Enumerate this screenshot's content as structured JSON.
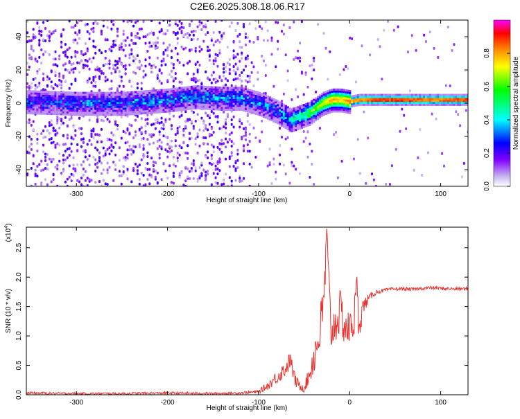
{
  "page_title": "C2E6.2025.308.18.06.R17",
  "chart_data": [
    {
      "type": "heatmap",
      "title": "C2E6.2025.308.18.06.R17",
      "xlabel": "Height of straight line (km)",
      "ylabel": "Frequency (Hz)",
      "xlim": [
        -355,
        130
      ],
      "ylim": [
        -50,
        50
      ],
      "x_ticks": [
        {
          "value": -300,
          "label": "-300"
        },
        {
          "value": -200,
          "label": "-200"
        },
        {
          "value": -100,
          "label": "-100"
        },
        {
          "value": 0,
          "label": "0"
        },
        {
          "value": 100,
          "label": "100"
        }
      ],
      "y_ticks": [
        {
          "value": -40,
          "label": "-40"
        },
        {
          "value": -20,
          "label": "-20"
        },
        {
          "value": 0,
          "label": "0"
        },
        {
          "value": 20,
          "label": "20"
        },
        {
          "value": 40,
          "label": "40"
        }
      ],
      "ridge": {
        "x": [
          -355,
          -300,
          -250,
          -200,
          -170,
          -140,
          -120,
          -100,
          -80,
          -65,
          -55,
          -45,
          -40,
          -30,
          -20,
          -10,
          0,
          10,
          30,
          60,
          90,
          110,
          130
        ],
        "y": [
          1,
          0,
          0,
          2,
          4,
          3,
          3,
          0,
          -5,
          -10,
          -8,
          -6,
          -4,
          0,
          2,
          2,
          1,
          2,
          2,
          2,
          2,
          2,
          2
        ],
        "amplitude": [
          0.25,
          0.28,
          0.3,
          0.32,
          0.34,
          0.33,
          0.32,
          0.3,
          0.3,
          0.4,
          0.5,
          0.55,
          0.6,
          0.7,
          0.8,
          0.75,
          0.85,
          0.9,
          0.97,
          0.97,
          0.9,
          0.95,
          0.97
        ]
      },
      "colorbar": {
        "label": "Normalized spectral amplitude",
        "range": [
          0.0,
          1.0
        ],
        "ticks": [
          {
            "value": 0.0,
            "label": "0.0"
          },
          {
            "value": 0.2,
            "label": "0.2"
          },
          {
            "value": 0.4,
            "label": "0.4"
          },
          {
            "value": 0.6,
            "label": "0.6"
          },
          {
            "value": 0.8,
            "label": "0.8"
          }
        ],
        "colors": [
          "#ffffff",
          "#c8b4f0",
          "#8000ff",
          "#0000ff",
          "#00ffff",
          "#00ff00",
          "#ffff00",
          "#ff8000",
          "#ff0000",
          "#ff00ff"
        ]
      }
    },
    {
      "type": "line",
      "xlabel": "Height of straight line (km)",
      "ylabel": "SNR (10 * v/v)",
      "y_multiplier": "(x10",
      "y_multiplier_exp": "4",
      "xlim": [
        -355,
        130
      ],
      "ylim": [
        0,
        2.85
      ],
      "x_ticks": [
        {
          "value": -300,
          "label": "-300"
        },
        {
          "value": -200,
          "label": "-200"
        },
        {
          "value": -100,
          "label": "-100"
        },
        {
          "value": 0,
          "label": "0"
        },
        {
          "value": 100,
          "label": "100"
        }
      ],
      "y_ticks": [
        {
          "value": 0.0,
          "label": "0.0"
        },
        {
          "value": 0.5,
          "label": "0.5"
        },
        {
          "value": 1.0,
          "label": "1.0"
        },
        {
          "value": 1.5,
          "label": "1.5"
        },
        {
          "value": 2.0,
          "label": "2.0"
        },
        {
          "value": 2.5,
          "label": "2.5"
        }
      ],
      "series": [
        {
          "name": "SNR",
          "color": "#e8302c",
          "x": [
            -355,
            -300,
            -250,
            -200,
            -150,
            -120,
            -100,
            -90,
            -80,
            -70,
            -65,
            -60,
            -55,
            -50,
            -45,
            -40,
            -35,
            -30,
            -27,
            -25,
            -22,
            -20,
            -15,
            -10,
            -5,
            0,
            5,
            8,
            10,
            15,
            20,
            25,
            30,
            40,
            50,
            60,
            70,
            80,
            90,
            100,
            110,
            120,
            130
          ],
          "y": [
            0.03,
            0.02,
            0.02,
            0.03,
            0.02,
            0.03,
            0.05,
            0.15,
            0.3,
            0.45,
            0.6,
            0.25,
            0.15,
            0.12,
            0.3,
            0.6,
            0.9,
            1.3,
            2.0,
            2.8,
            1.5,
            1.05,
            1.25,
            1.4,
            1.15,
            1.1,
            1.3,
            1.95,
            1.2,
            1.5,
            1.62,
            1.7,
            1.75,
            1.78,
            1.8,
            1.8,
            1.79,
            1.81,
            1.82,
            1.81,
            1.8,
            1.8,
            1.8
          ],
          "noise": [
            0.02,
            0.02,
            0.02,
            0.02,
            0.02,
            0.02,
            0.03,
            0.07,
            0.12,
            0.15,
            0.15,
            0.12,
            0.08,
            0.08,
            0.15,
            0.3,
            0.4,
            0.5,
            0.4,
            0.1,
            0.45,
            0.35,
            0.35,
            0.4,
            0.35,
            0.3,
            0.35,
            0.1,
            0.3,
            0.15,
            0.08,
            0.05,
            0.04,
            0.03,
            0.03,
            0.03,
            0.03,
            0.03,
            0.03,
            0.03,
            0.03,
            0.03,
            0.03
          ]
        }
      ]
    }
  ]
}
